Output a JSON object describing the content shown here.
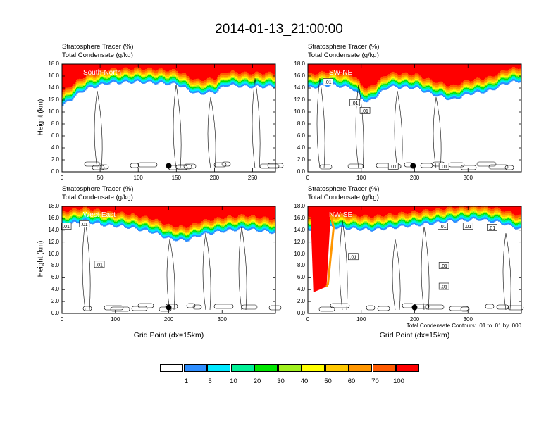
{
  "title": "2014-01-13_21:00:00",
  "chart_data": [
    {
      "type": "heatmap",
      "subtitle_1": "Stratosphere Tracer   (%)",
      "subtitle_2": "Total Condensate   (g/kg)",
      "cross_section": "South-North",
      "ylabel": "Height (km)",
      "xlabel": "",
      "xlim": [
        0,
        280
      ],
      "ylim": [
        0,
        18
      ],
      "xticks": [
        "0",
        "50",
        "100",
        "150",
        "200",
        "250"
      ],
      "xtick_values": [
        0,
        50,
        100,
        150,
        200,
        250
      ],
      "yticks": [
        "0.0",
        "2.0",
        "4.0",
        "6.0",
        "8.0",
        "10.0",
        "12.0",
        "14.0",
        "16.0",
        "18.0"
      ],
      "marker_point": [
        140,
        1.0
      ],
      "tracer_profile": [
        {
          "x": 0,
          "bottom": 11.0
        },
        {
          "x": 15,
          "bottom": 12.5
        },
        {
          "x": 30,
          "bottom": 13.8
        },
        {
          "x": 60,
          "bottom": 14.8
        },
        {
          "x": 100,
          "bottom": 15.0
        },
        {
          "x": 150,
          "bottom": 14.6
        },
        {
          "x": 175,
          "bottom": 13.0
        },
        {
          "x": 200,
          "bottom": 13.3
        },
        {
          "x": 215,
          "bottom": 14.5
        },
        {
          "x": 240,
          "bottom": 14.2
        },
        {
          "x": 280,
          "bottom": 14.2
        }
      ],
      "contour_labels": []
    },
    {
      "type": "heatmap",
      "subtitle_1": "Stratosphere Tracer   (%)",
      "subtitle_2": "Total Condensate   (g/kg)",
      "cross_section": "SW-NE",
      "ylabel": "",
      "xlabel": "",
      "xlim": [
        0,
        400
      ],
      "ylim": [
        0,
        18
      ],
      "xticks": [
        "0",
        "100",
        "200",
        "300"
      ],
      "xtick_values": [
        0,
        100,
        200,
        300
      ],
      "yticks": [
        "0.0",
        "2.0",
        "4.0",
        "6.0",
        "8.0",
        "10.0",
        "12.0",
        "14.0",
        "16.0",
        "18.0"
      ],
      "marker_point": [
        197,
        1.0
      ],
      "tracer_profile": [
        {
          "x": 0,
          "bottom": 14.0
        },
        {
          "x": 40,
          "bottom": 14.5
        },
        {
          "x": 80,
          "bottom": 14.0
        },
        {
          "x": 110,
          "bottom": 11.5
        },
        {
          "x": 150,
          "bottom": 14.2
        },
        {
          "x": 200,
          "bottom": 14.0
        },
        {
          "x": 230,
          "bottom": 13.0
        },
        {
          "x": 270,
          "bottom": 12.0
        },
        {
          "x": 300,
          "bottom": 13.0
        },
        {
          "x": 340,
          "bottom": 13.5
        },
        {
          "x": 370,
          "bottom": 14.8
        },
        {
          "x": 400,
          "bottom": 15.2
        }
      ],
      "contour_labels": [
        {
          "text": ".01",
          "x": 38,
          "y": 15.0
        },
        {
          "text": ".01",
          "x": 88,
          "y": 11.5
        },
        {
          "text": ".01",
          "x": 107,
          "y": 10.2
        },
        {
          "text": ".01",
          "x": 160,
          "y": 0.9
        },
        {
          "text": ".01",
          "x": 255,
          "y": 0.9
        }
      ]
    },
    {
      "type": "heatmap",
      "subtitle_1": "Stratosphere Tracer   (%)",
      "subtitle_2": "Total Condensate   (g/kg)",
      "cross_section": "West-East",
      "ylabel": "Height (km)",
      "xlabel": "Grid Point (dx=15km)",
      "xlim": [
        0,
        400
      ],
      "ylim": [
        0,
        18
      ],
      "xticks": [
        "0",
        "100",
        "200",
        "300"
      ],
      "xtick_values": [
        0,
        100,
        200,
        300
      ],
      "yticks": [
        "0.0",
        "2.0",
        "4.0",
        "6.0",
        "8.0",
        "10.0",
        "12.0",
        "14.0",
        "16.0",
        "18.0"
      ],
      "marker_point": [
        200,
        1.0
      ],
      "tracer_profile": [
        {
          "x": 0,
          "bottom": 14.8
        },
        {
          "x": 40,
          "bottom": 15.5
        },
        {
          "x": 80,
          "bottom": 14.8
        },
        {
          "x": 120,
          "bottom": 14.5
        },
        {
          "x": 170,
          "bottom": 13.6
        },
        {
          "x": 200,
          "bottom": 12.5
        },
        {
          "x": 230,
          "bottom": 12.2
        },
        {
          "x": 260,
          "bottom": 13.2
        },
        {
          "x": 300,
          "bottom": 13.8
        },
        {
          "x": 340,
          "bottom": 14.2
        },
        {
          "x": 400,
          "bottom": 13.5
        }
      ],
      "contour_labels": [
        {
          "text": ".01",
          "x": 8,
          "y": 14.6
        },
        {
          "text": ".01",
          "x": 42,
          "y": 15.0
        },
        {
          "text": ".01",
          "x": 70,
          "y": 8.2
        }
      ]
    },
    {
      "type": "heatmap",
      "subtitle_1": "Stratosphere Tracer   (%)",
      "subtitle_2": "Total Condensate   (g/kg)",
      "cross_section": "NW-SE",
      "ylabel": "",
      "xlabel": "Grid Point (dx=15km)",
      "xlim": [
        0,
        400
      ],
      "ylim": [
        0,
        18
      ],
      "xticks": [
        "0",
        "100",
        "200",
        "300"
      ],
      "xtick_values": [
        0,
        100,
        200,
        300
      ],
      "yticks": [
        "0.0",
        "2.0",
        "4.0",
        "6.0",
        "8.0",
        "10.0",
        "12.0",
        "14.0",
        "16.0",
        "18.0"
      ],
      "marker_point": [
        200,
        1.0
      ],
      "tracer_profile": [
        {
          "x": 0,
          "bottom": 14.0
        },
        {
          "x": 40,
          "bottom": 14.5
        },
        {
          "x": 80,
          "bottom": 14.2
        },
        {
          "x": 120,
          "bottom": 14.0
        },
        {
          "x": 170,
          "bottom": 14.5
        },
        {
          "x": 220,
          "bottom": 15.0
        },
        {
          "x": 270,
          "bottom": 15.5
        },
        {
          "x": 320,
          "bottom": 15.8
        },
        {
          "x": 360,
          "bottom": 15.2
        },
        {
          "x": 400,
          "bottom": 14.0
        }
      ],
      "intrusion": {
        "x_from": 5,
        "x_to": 35,
        "bottom_km": 4.5
      },
      "contour_labels": [
        {
          "text": ".01",
          "x": 85,
          "y": 9.5
        },
        {
          "text": ".01",
          "x": 253,
          "y": 14.6
        },
        {
          "text": ".01",
          "x": 300,
          "y": 14.6
        },
        {
          "text": ".01",
          "x": 345,
          "y": 14.4
        },
        {
          "text": ".01",
          "x": 255,
          "y": 8.0
        },
        {
          "text": ".01",
          "x": 255,
          "y": 4.5
        }
      ],
      "note": "Total Condensate Contours: .01 to .01 by .000"
    }
  ],
  "legend": {
    "colors": [
      "#ffffff",
      "#2e8eff",
      "#00e8ff",
      "#00f096",
      "#00e600",
      "#a0f01e",
      "#ffff00",
      "#ffc800",
      "#ff9600",
      "#ff5a00",
      "#ff0000"
    ],
    "labels": [
      "1",
      "5",
      "10",
      "20",
      "30",
      "40",
      "50",
      "60",
      "70",
      "100"
    ]
  }
}
